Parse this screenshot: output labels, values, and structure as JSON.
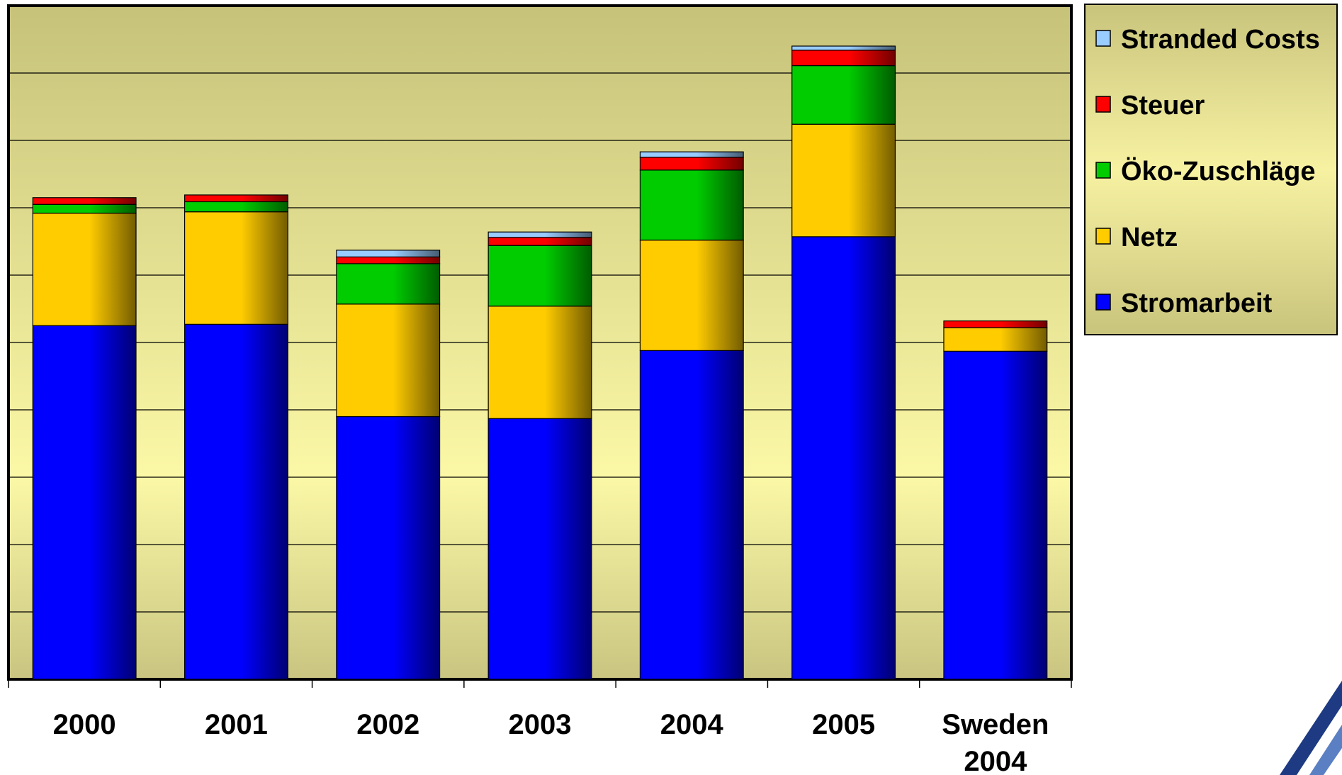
{
  "chart_data": {
    "type": "bar",
    "stacked": true,
    "title": "",
    "xlabel": "",
    "ylabel": "",
    "ylim": [
      0,
      10
    ],
    "grid": true,
    "legend_position": "right",
    "categories": [
      [
        "2000"
      ],
      [
        "2001"
      ],
      [
        "2002"
      ],
      [
        "2003"
      ],
      [
        "2004"
      ],
      [
        "2005"
      ],
      [
        "Sweden",
        "2004"
      ]
    ],
    "series": [
      {
        "name": "Stromarbeit",
        "color": "#0000ff",
        "values": [
          5.25,
          5.27,
          3.9,
          3.87,
          4.88,
          6.57,
          4.87
        ]
      },
      {
        "name": "Netz",
        "color": "#ffcc00",
        "values": [
          1.67,
          1.67,
          1.67,
          1.67,
          1.64,
          1.67,
          0.35
        ]
      },
      {
        "name": "Öko-Zuschläge",
        "color": "#00cc00",
        "values": [
          0.13,
          0.15,
          0.6,
          0.9,
          1.04,
          0.87,
          0.0
        ]
      },
      {
        "name": "Steuer",
        "color": "#ff0000",
        "values": [
          0.1,
          0.1,
          0.1,
          0.12,
          0.19,
          0.23,
          0.1
        ]
      },
      {
        "name": "Stranded Costs",
        "color": "#99ccff",
        "values": [
          0.0,
          0.0,
          0.1,
          0.08,
          0.08,
          0.06,
          0.0
        ]
      }
    ]
  },
  "legend_order": [
    "Stranded Costs",
    "Steuer",
    "Öko-Zuschläge",
    "Netz",
    "Stromarbeit"
  ],
  "logo": {
    "icon": "triangle-logo-icon"
  }
}
